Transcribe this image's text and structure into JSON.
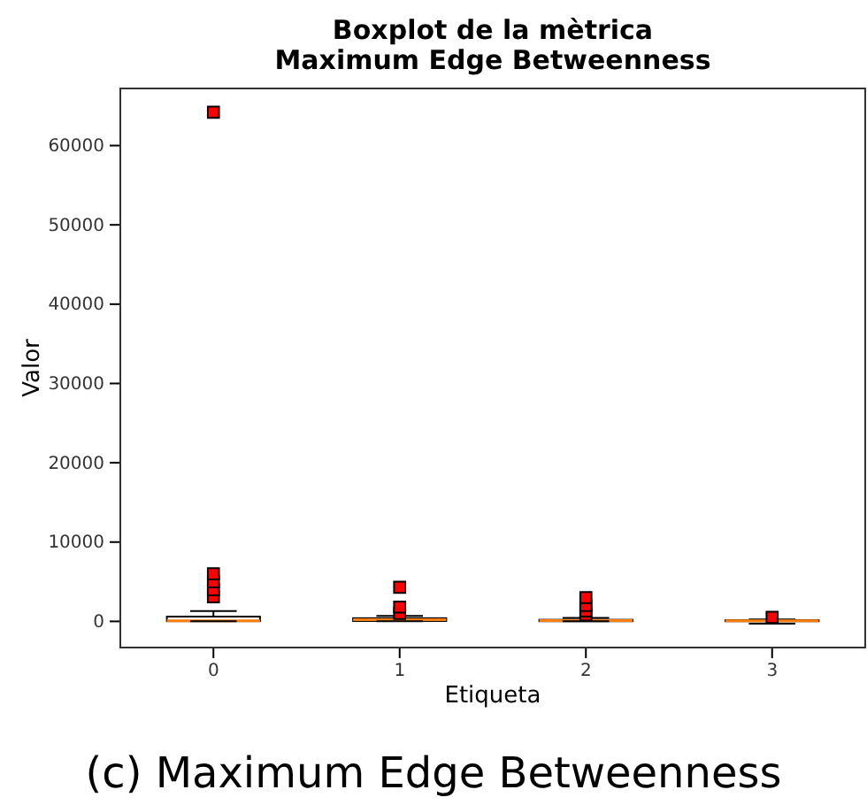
{
  "chart_data": {
    "type": "box",
    "title": "Boxplot de la mètrica\nMaximum Edge Betweenness",
    "xlabel": "Etiqueta",
    "ylabel": "Valor",
    "categories": [
      "0",
      "1",
      "2",
      "3"
    ],
    "boxes": [
      {
        "low": 10,
        "q1": 30,
        "median": 80,
        "q3": 600,
        "high": 1300,
        "outliers": [
          3100,
          4000,
          5000,
          6000,
          64200
        ]
      },
      {
        "low": 10,
        "q1": 50,
        "median": 200,
        "q3": 400,
        "high": 700,
        "outliers": [
          1000,
          1800,
          4300
        ]
      },
      {
        "low": 5,
        "q1": 20,
        "median": 100,
        "q3": 200,
        "high": 450,
        "outliers": [
          800,
          1300,
          2000,
          3000
        ]
      },
      {
        "low": -300,
        "q1": 20,
        "median": 80,
        "q3": 150,
        "high": 250,
        "outliers": [
          500
        ]
      }
    ],
    "ylim": [
      -3300,
      67200
    ],
    "yticks": [
      0,
      10000,
      20000,
      30000,
      40000,
      50000,
      60000
    ],
    "color": "#000000",
    "marker": "square",
    "grid": false,
    "annotations": [
      "(c) Maximum Edge Betweenness"
    ]
  }
}
